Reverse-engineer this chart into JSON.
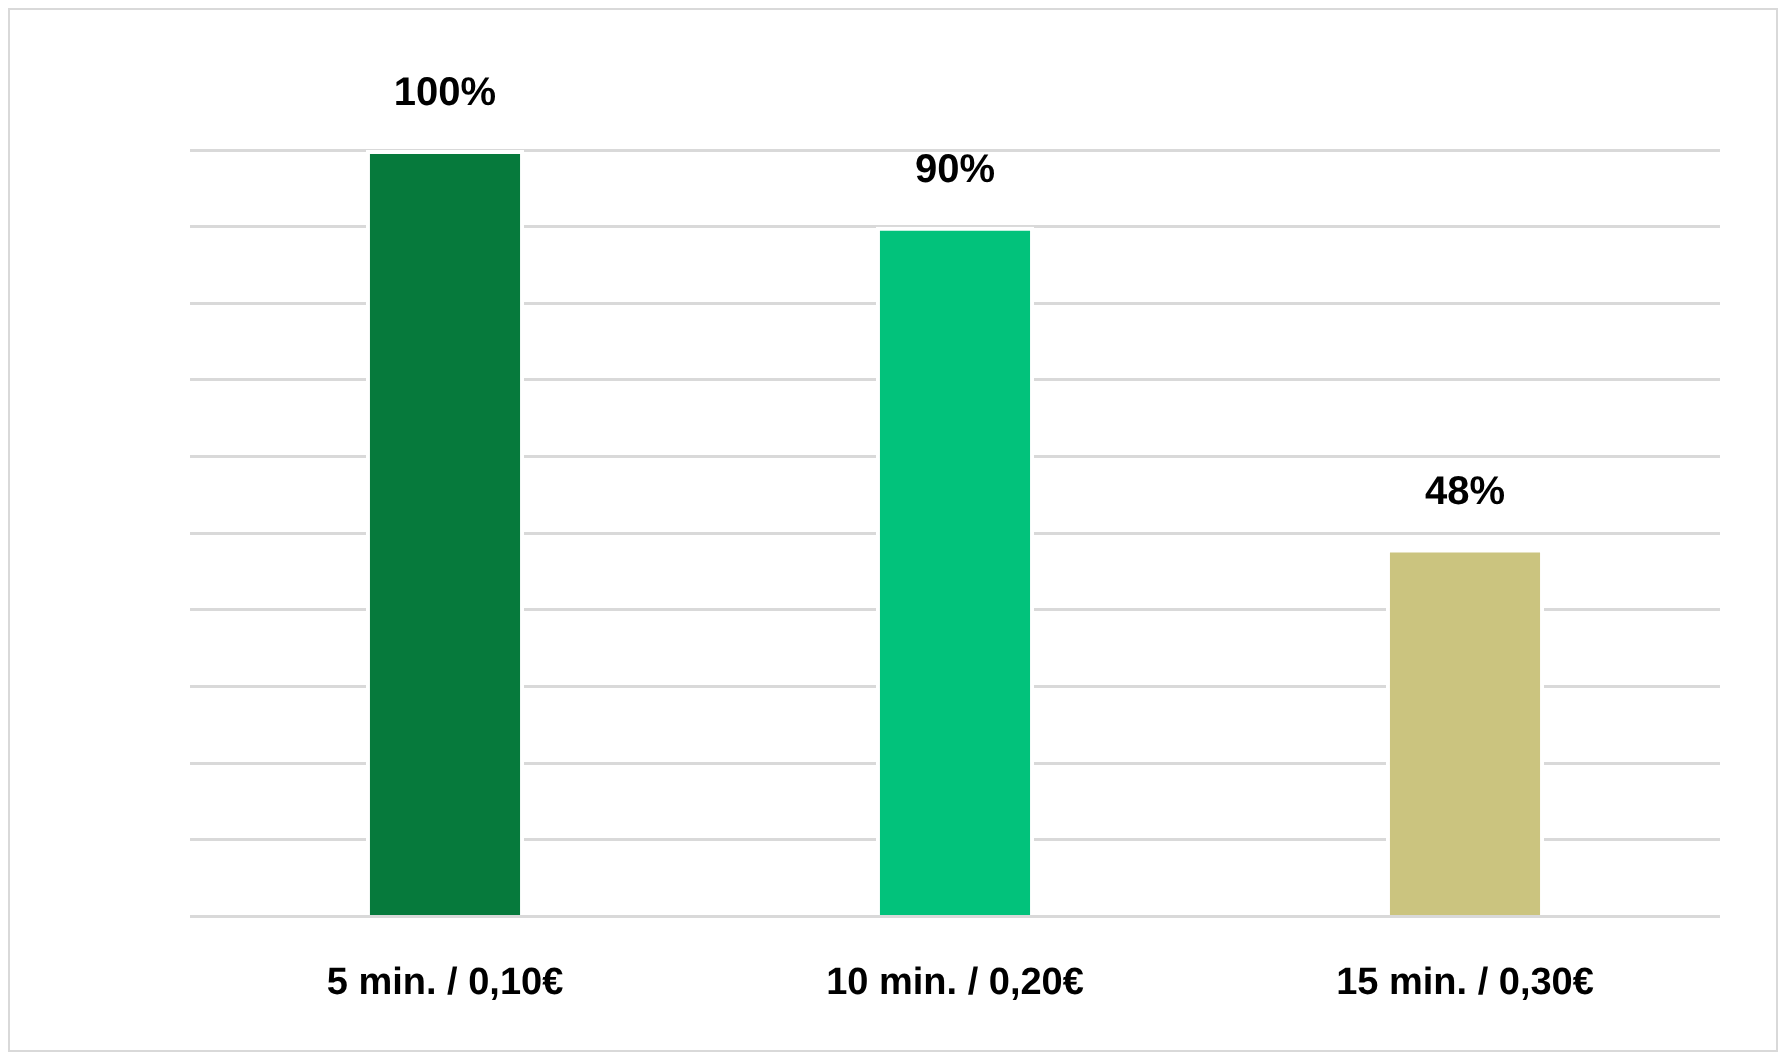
{
  "chart_data": {
    "type": "bar",
    "categories": [
      "5 min. / 0,10€",
      "10 min. / 0,20€",
      "15 min. / 0,30€"
    ],
    "values": [
      100,
      90,
      48
    ],
    "colors": [
      "#067a3c",
      "#02c27b",
      "#cbc47f"
    ],
    "value_labels": [
      "100%",
      "90%",
      "48%"
    ],
    "tick_labels": "x",
    "grid": "y",
    "legend": false
  }
}
